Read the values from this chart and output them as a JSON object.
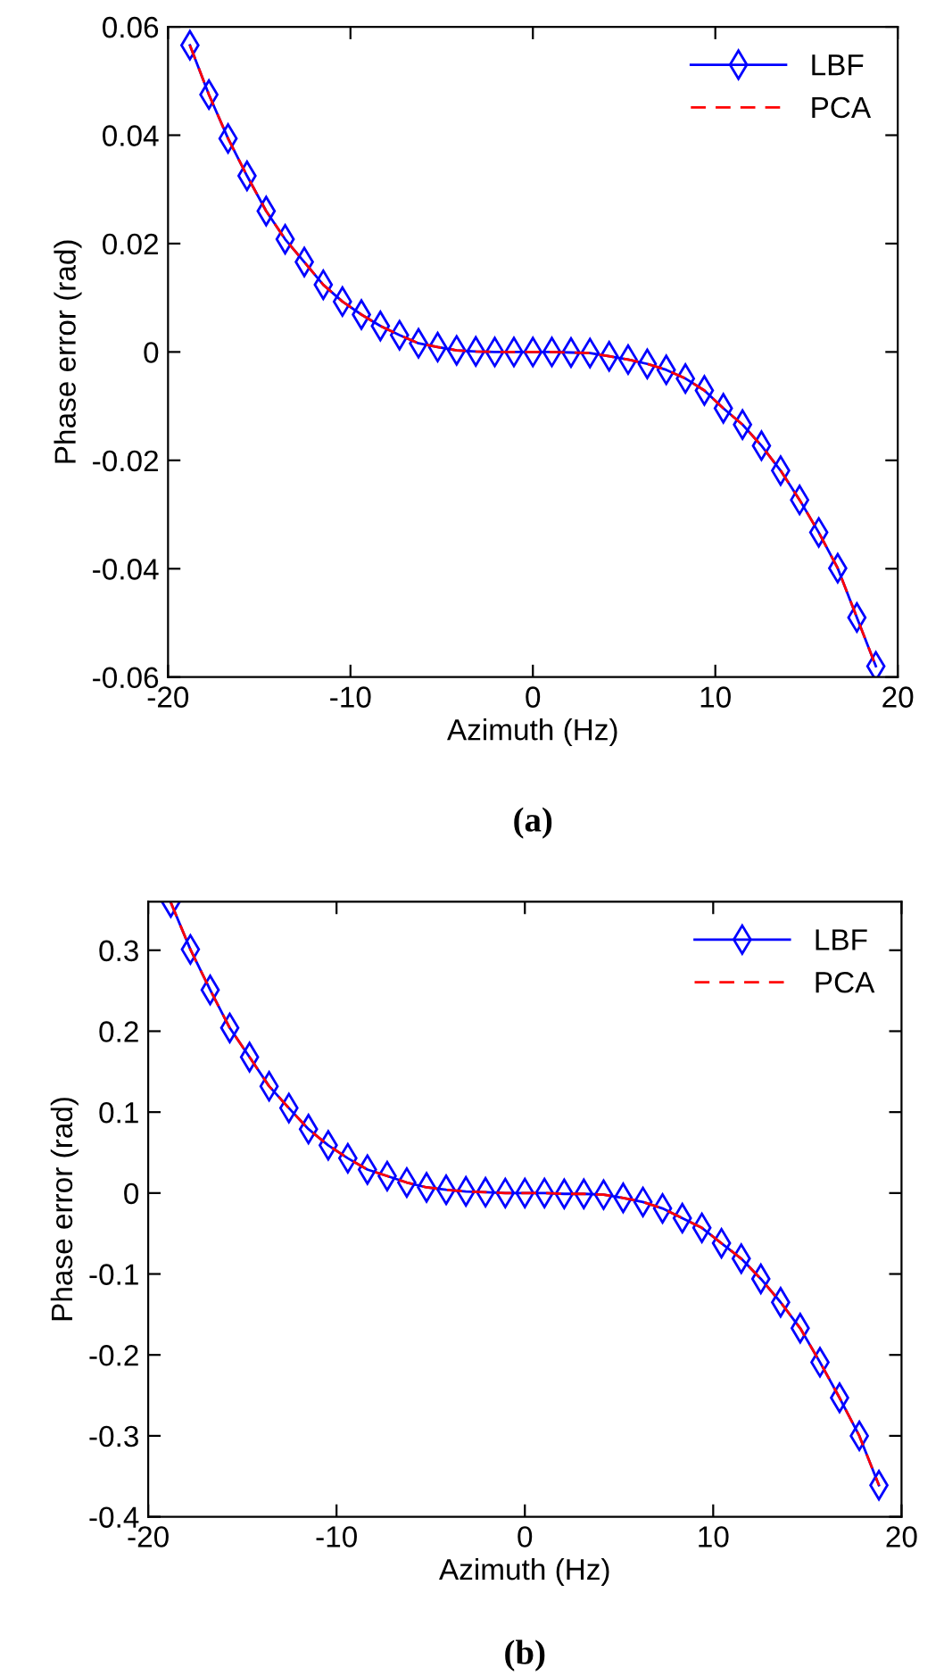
{
  "chart_data": [
    {
      "type": "line",
      "xlabel": "Azimuth (Hz)",
      "ylabel": "Phase error (rad)",
      "annotations": [
        "(a)"
      ],
      "x": [
        -18.8,
        -17.76,
        -16.71,
        -15.67,
        -14.62,
        -13.58,
        -12.53,
        -11.49,
        -10.44,
        -9.4,
        -8.36,
        -7.31,
        -6.27,
        -5.22,
        -4.18,
        -3.13,
        -2.09,
        -1.04,
        0,
        1.04,
        2.09,
        3.13,
        4.18,
        5.22,
        6.27,
        7.31,
        8.36,
        9.4,
        10.44,
        11.49,
        12.53,
        13.58,
        14.62,
        15.67,
        16.71,
        17.76,
        18.8
      ],
      "series": [
        {
          "name": "LBF",
          "color": "#0000ff",
          "marker": "diamond",
          "line_style": "solid",
          "values": [
            0.0566,
            0.0475,
            0.0394,
            0.0325,
            0.026,
            0.0208,
            0.0166,
            0.0124,
            0.0093,
            0.0069,
            0.0048,
            0.0031,
            0.0016,
            0.0009,
            0.0003,
            0.0001,
            0,
            0,
            0,
            0,
            -0.0001,
            -0.0002,
            -0.0008,
            -0.0014,
            -0.0022,
            -0.0033,
            -0.0049,
            -0.0071,
            -0.0104,
            -0.0134,
            -0.0173,
            -0.0219,
            -0.0273,
            -0.0333,
            -0.0399,
            -0.049,
            -0.058
          ]
        },
        {
          "name": "PCA",
          "color": "#ff0000",
          "marker": "none",
          "line_style": "dashed",
          "values": [
            0.0566,
            0.0475,
            0.0394,
            0.0325,
            0.026,
            0.0208,
            0.0166,
            0.0124,
            0.0093,
            0.0069,
            0.0048,
            0.0031,
            0.0016,
            0.0009,
            0.0003,
            0.0001,
            0,
            0,
            0,
            0,
            -0.0001,
            -0.0002,
            -0.0008,
            -0.0014,
            -0.0022,
            -0.0033,
            -0.0049,
            -0.0071,
            -0.0104,
            -0.0134,
            -0.0173,
            -0.0219,
            -0.0273,
            -0.0333,
            -0.0399,
            -0.049,
            -0.058
          ]
        }
      ],
      "xlim": [
        -20,
        20
      ],
      "xticks": [
        -20,
        -10,
        0,
        10,
        20
      ],
      "ylim": [
        -0.06,
        0.06
      ],
      "yticks": [
        -0.06,
        -0.04,
        -0.02,
        0,
        0.02,
        0.04,
        0.06
      ],
      "grid": false,
      "legend": "top right"
    },
    {
      "type": "line",
      "xlabel": "Azimuth (Hz)",
      "ylabel": "Phase error (rad)",
      "annotations": [
        "(b)"
      ],
      "x": [
        -18.8,
        -17.76,
        -16.71,
        -15.67,
        -14.62,
        -13.58,
        -12.53,
        -11.49,
        -10.44,
        -9.4,
        -8.36,
        -7.31,
        -6.27,
        -5.22,
        -4.18,
        -3.13,
        -2.09,
        -1.04,
        0,
        1.04,
        2.09,
        3.13,
        4.18,
        5.22,
        6.27,
        7.31,
        8.36,
        9.4,
        10.44,
        11.49,
        12.53,
        13.58,
        14.62,
        15.67,
        16.71,
        17.76,
        18.8
      ],
      "series": [
        {
          "name": "LBF",
          "color": "#0000ff",
          "marker": "diamond",
          "line_style": "solid",
          "values": [
            0.359,
            0.301,
            0.251,
            0.204,
            0.168,
            0.132,
            0.105,
            0.079,
            0.059,
            0.043,
            0.029,
            0.021,
            0.013,
            0.007,
            0.004,
            0.002,
            0.001,
            0,
            0,
            0,
            -0.001,
            -0.001,
            -0.002,
            -0.006,
            -0.011,
            -0.019,
            -0.031,
            -0.043,
            -0.062,
            -0.081,
            -0.106,
            -0.135,
            -0.167,
            -0.209,
            -0.253,
            -0.3,
            -0.361
          ]
        },
        {
          "name": "PCA",
          "color": "#ff0000",
          "marker": "none",
          "line_style": "dashed",
          "values": [
            0.359,
            0.301,
            0.251,
            0.204,
            0.168,
            0.132,
            0.105,
            0.079,
            0.059,
            0.043,
            0.029,
            0.021,
            0.013,
            0.007,
            0.004,
            0.002,
            0.001,
            0,
            0,
            0,
            -0.001,
            -0.001,
            -0.002,
            -0.006,
            -0.011,
            -0.019,
            -0.031,
            -0.043,
            -0.062,
            -0.081,
            -0.106,
            -0.135,
            -0.167,
            -0.209,
            -0.253,
            -0.3,
            -0.361
          ]
        }
      ],
      "xlim": [
        -20,
        20
      ],
      "xticks": [
        -20,
        -10,
        0,
        10,
        20
      ],
      "ylim": [
        -0.4,
        0.36
      ],
      "yticks": [
        -0.4,
        -0.3,
        -0.2,
        -0.1,
        0,
        0.1,
        0.2,
        0.3
      ],
      "grid": false,
      "legend": "top right"
    }
  ]
}
